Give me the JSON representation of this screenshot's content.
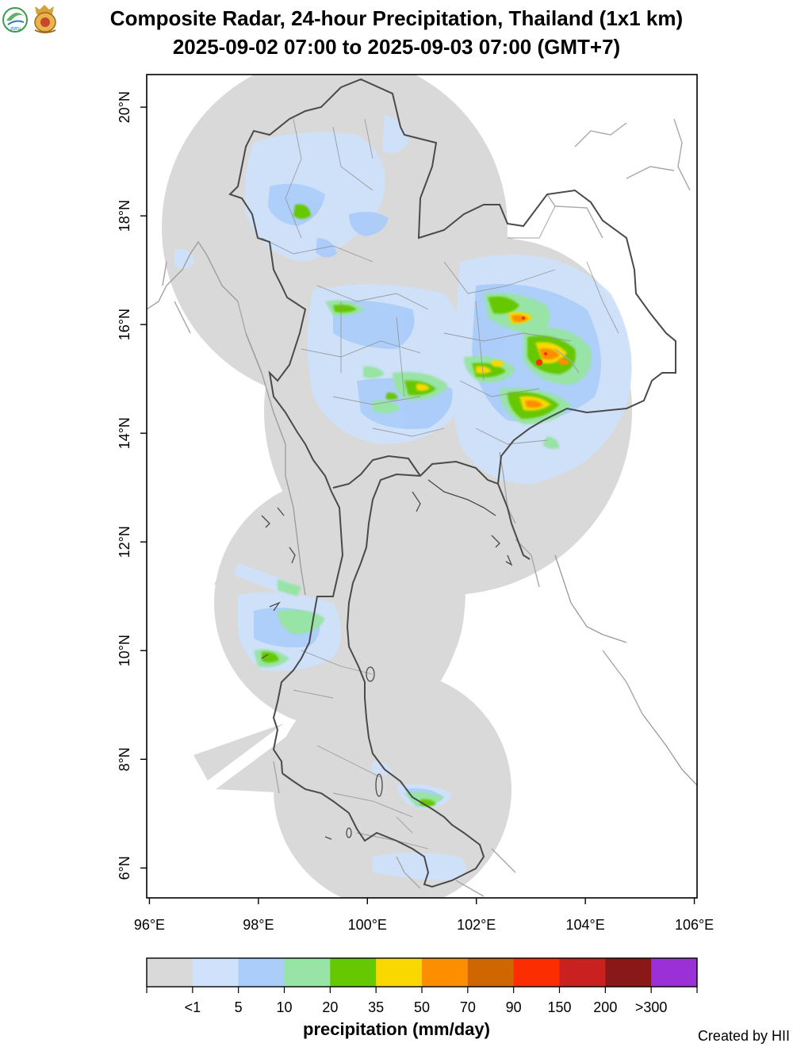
{
  "header": {
    "title_line1": "Composite Radar, 24-hour Precipitation, Thailand (1x1 km)",
    "title_line2": "2025-09-02 07:00 to 2025-09-03 07:00 (GMT+7)",
    "logo_left_text": "สสน"
  },
  "map": {
    "lon_range": [
      95.95,
      106.05
    ],
    "lat_range": [
      5.45,
      20.6
    ],
    "x_ticks": [
      {
        "value": 96,
        "label": "96°E"
      },
      {
        "value": 98,
        "label": "98°E"
      },
      {
        "value": 100,
        "label": "100°E"
      },
      {
        "value": 102,
        "label": "102°E"
      },
      {
        "value": 104,
        "label": "104°E"
      },
      {
        "value": 106,
        "label": "106°E"
      }
    ],
    "y_ticks": [
      {
        "value": 6,
        "label": "6°N"
      },
      {
        "value": 8,
        "label": "8°N"
      },
      {
        "value": 10,
        "label": "10°N"
      },
      {
        "value": 12,
        "label": "12°N"
      },
      {
        "value": 14,
        "label": "14°N"
      },
      {
        "value": 16,
        "label": "16°N"
      },
      {
        "value": 18,
        "label": "18°N"
      },
      {
        "value": 20,
        "label": "20°N"
      }
    ]
  },
  "legend": {
    "title": "precipitation (mm/day)",
    "colors": [
      "#d9d9d9",
      "#cfe1fb",
      "#abcdfa",
      "#98e3a6",
      "#66c800",
      "#f8d800",
      "#fd8e00",
      "#cf6600",
      "#fc2d00",
      "#cb2020",
      "#891818",
      "#9b30d9"
    ],
    "labels": [
      "<1",
      "5",
      "10",
      "20",
      "35",
      "50",
      "70",
      "90",
      "150",
      "200",
      ">300"
    ]
  },
  "footer": {
    "credit": "Created by HII"
  }
}
